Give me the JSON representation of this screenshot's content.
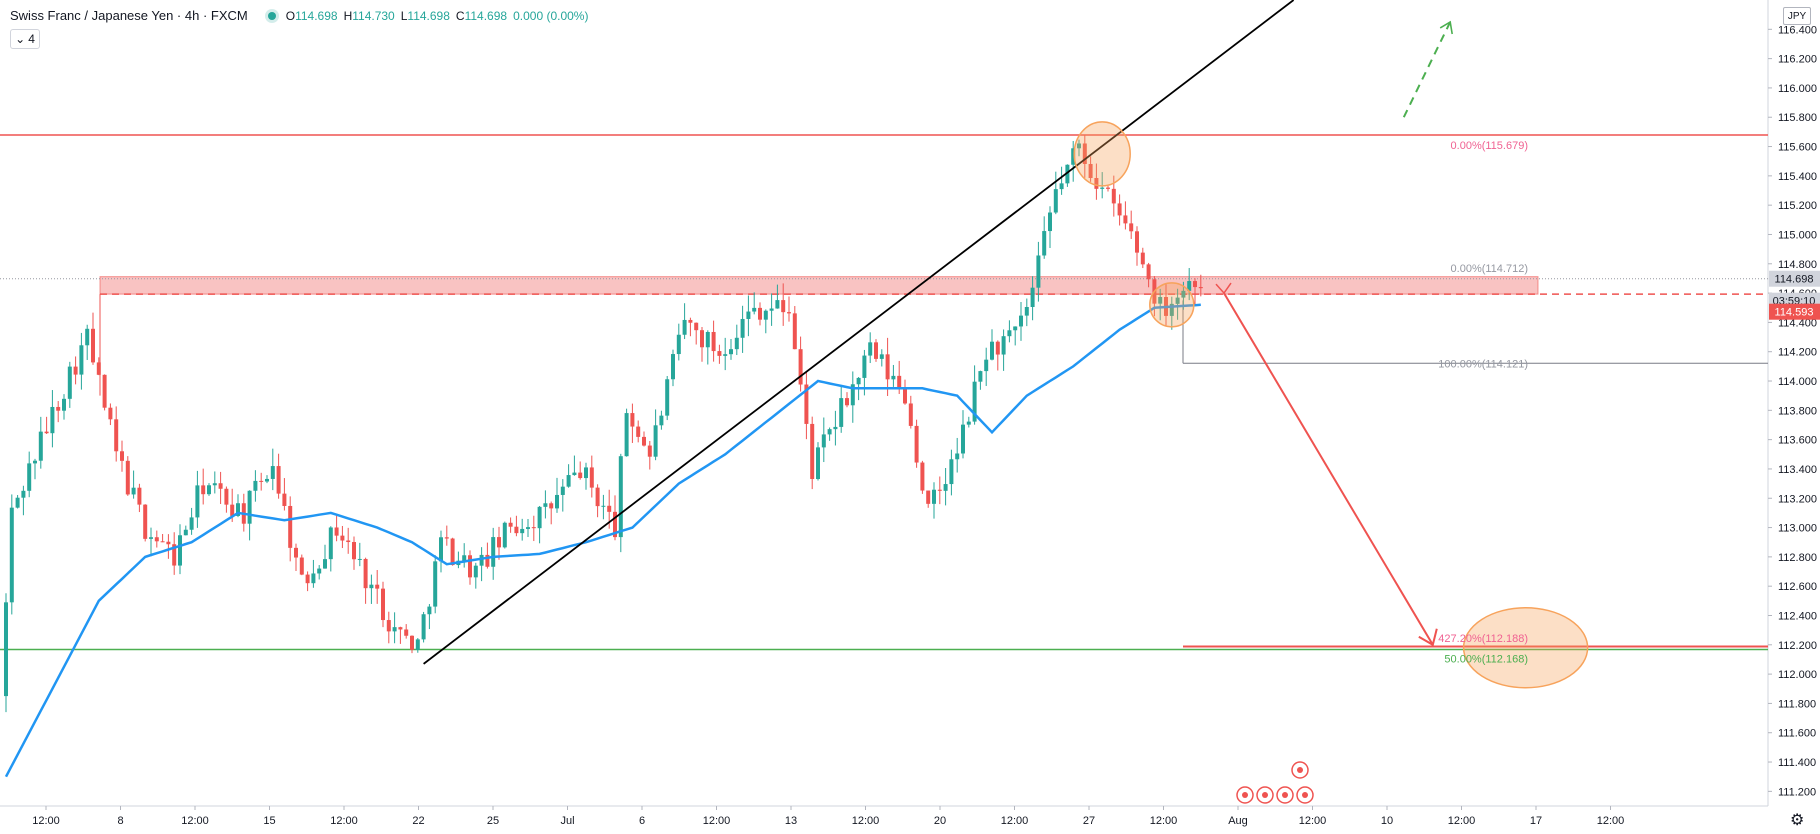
{
  "header": {
    "symbol_title": "Swiss Franc / Japanese Yen · 4h · FXCM",
    "open": "114.698",
    "high": "114.730",
    "low": "114.698",
    "close": "114.698",
    "change": "0.000 (0.00%)",
    "interval": "4"
  },
  "currency": "JPY",
  "colors": {
    "up": "#26a69a",
    "down": "#ef5350",
    "ma": "#2196f3",
    "resistance": "#ef5350",
    "support": "#4caf50",
    "fib_label": "#f06292",
    "ellipse": "#f7a35c"
  },
  "price_axis": {
    "last_price": "114.698",
    "countdown": "03:59:10",
    "level_price": "114.593"
  },
  "chart_data": {
    "type": "candlestick",
    "y_range": [
      111.1,
      116.6
    ],
    "y_ticks": [
      "111.200",
      "111.400",
      "111.600",
      "111.800",
      "112.000",
      "112.200",
      "112.400",
      "112.600",
      "112.800",
      "113.000",
      "113.200",
      "113.400",
      "113.600",
      "113.800",
      "114.000",
      "114.200",
      "114.400",
      "114.600",
      "114.800",
      "115.000",
      "115.200",
      "115.400",
      "115.600",
      "115.800",
      "116.000",
      "116.200",
      "116.400"
    ],
    "x_ticks": [
      "12:00",
      "8",
      "12:00",
      "15",
      "12:00",
      "22",
      "25",
      "Jul",
      "6",
      "12:00",
      "13",
      "12:00",
      "20",
      "12:00",
      "27",
      "12:00",
      "Aug",
      "12:00",
      "10",
      "12:00",
      "17",
      "12:00"
    ],
    "candle_anchors": [
      {
        "i": 0,
        "p": 111.85
      },
      {
        "i": 2,
        "p": 113.1
      },
      {
        "i": 6,
        "p": 113.5
      },
      {
        "i": 12,
        "p": 114.05
      },
      {
        "i": 15,
        "p": 114.3
      },
      {
        "i": 20,
        "p": 113.5
      },
      {
        "i": 25,
        "p": 113.0
      },
      {
        "i": 30,
        "p": 112.8
      },
      {
        "i": 35,
        "p": 113.3
      },
      {
        "i": 42,
        "p": 113.1
      },
      {
        "i": 47,
        "p": 113.45
      },
      {
        "i": 52,
        "p": 112.6
      },
      {
        "i": 58,
        "p": 113.0
      },
      {
        "i": 64,
        "p": 112.6
      },
      {
        "i": 68,
        "p": 112.3
      },
      {
        "i": 72,
        "p": 112.2
      },
      {
        "i": 76,
        "p": 112.9
      },
      {
        "i": 82,
        "p": 112.7
      },
      {
        "i": 88,
        "p": 113.0
      },
      {
        "i": 94,
        "p": 113.1
      },
      {
        "i": 100,
        "p": 113.4
      },
      {
        "i": 106,
        "p": 113.0
      },
      {
        "i": 108,
        "p": 113.8
      },
      {
        "i": 112,
        "p": 113.5
      },
      {
        "i": 118,
        "p": 114.4
      },
      {
        "i": 124,
        "p": 114.2
      },
      {
        "i": 130,
        "p": 114.5
      },
      {
        "i": 136,
        "p": 114.5
      },
      {
        "i": 140,
        "p": 113.4
      },
      {
        "i": 145,
        "p": 113.8
      },
      {
        "i": 150,
        "p": 114.2
      },
      {
        "i": 156,
        "p": 113.9
      },
      {
        "i": 160,
        "p": 113.1
      },
      {
        "i": 165,
        "p": 113.5
      },
      {
        "i": 170,
        "p": 114.2
      },
      {
        "i": 175,
        "p": 114.3
      },
      {
        "i": 178,
        "p": 114.6
      },
      {
        "i": 182,
        "p": 115.3
      },
      {
        "i": 186,
        "p": 115.6
      },
      {
        "i": 190,
        "p": 115.3
      },
      {
        "i": 195,
        "p": 115.0
      },
      {
        "i": 198,
        "p": 114.7
      },
      {
        "i": 200,
        "p": 114.5
      },
      {
        "i": 203,
        "p": 114.6
      },
      {
        "i": 206,
        "p": 114.698
      }
    ],
    "ma_anchors": [
      {
        "i": 0,
        "p": 111.3
      },
      {
        "i": 8,
        "p": 111.9
      },
      {
        "i": 16,
        "p": 112.5
      },
      {
        "i": 24,
        "p": 112.8
      },
      {
        "i": 32,
        "p": 112.9
      },
      {
        "i": 40,
        "p": 113.1
      },
      {
        "i": 48,
        "p": 113.05
      },
      {
        "i": 56,
        "p": 113.1
      },
      {
        "i": 64,
        "p": 113.0
      },
      {
        "i": 70,
        "p": 112.9
      },
      {
        "i": 76,
        "p": 112.75
      },
      {
        "i": 84,
        "p": 112.8
      },
      {
        "i": 92,
        "p": 112.82
      },
      {
        "i": 100,
        "p": 112.9
      },
      {
        "i": 108,
        "p": 113.0
      },
      {
        "i": 116,
        "p": 113.3
      },
      {
        "i": 124,
        "p": 113.5
      },
      {
        "i": 132,
        "p": 113.75
      },
      {
        "i": 140,
        "p": 114.0
      },
      {
        "i": 146,
        "p": 113.95
      },
      {
        "i": 152,
        "p": 113.95
      },
      {
        "i": 158,
        "p": 113.95
      },
      {
        "i": 164,
        "p": 113.9
      },
      {
        "i": 170,
        "p": 113.65
      },
      {
        "i": 176,
        "p": 113.9
      },
      {
        "i": 184,
        "p": 114.1
      },
      {
        "i": 192,
        "p": 114.35
      },
      {
        "i": 198,
        "p": 114.5
      },
      {
        "i": 206,
        "p": 114.52
      }
    ],
    "candle_count": 207,
    "levels": {
      "resistance_top": 115.679,
      "zone_top": 114.712,
      "zone_bottom": 114.593,
      "fib_100": 114.121,
      "fib_427": 112.188,
      "support_green": 112.168
    },
    "fib_labels": {
      "top": "0.00%(115.679)",
      "zone": "0.00%(114.712)",
      "hundred": "100.00%(114.121)",
      "ext_427": "427.20%(112.188)",
      "ret_50": "50.00%(112.168)"
    },
    "trendline": {
      "from": {
        "i": 72,
        "p": 112.07
      },
      "to": {
        "i": 222,
        "p": 116.6
      }
    },
    "projection_arrow": {
      "from": {
        "i": 210,
        "p": 114.6
      },
      "to": {
        "i": 246,
        "p": 112.2
      }
    },
    "bull_arrow": {
      "from": {
        "i": 241,
        "p": 115.8
      },
      "to": {
        "i": 249,
        "p": 116.45
      }
    },
    "ellipses": [
      {
        "cx": 189,
        "cp": 115.55,
        "rx": 28,
        "ry": 32
      },
      {
        "cx": 201,
        "cp": 114.52,
        "rx": 22,
        "ry": 22
      },
      {
        "cx": 262,
        "cp": 112.18,
        "rx": 62,
        "ry": 40
      }
    ]
  }
}
